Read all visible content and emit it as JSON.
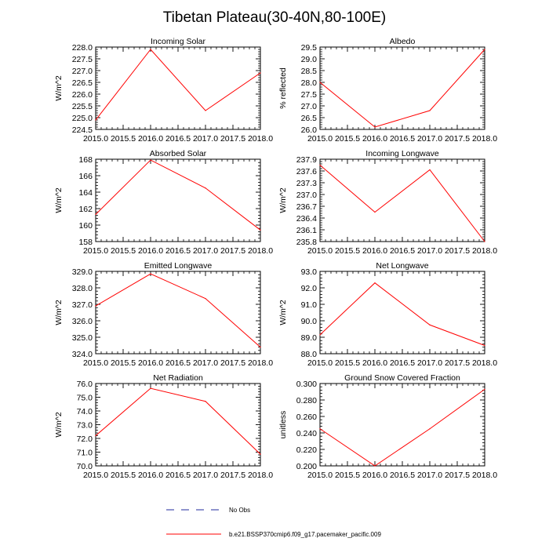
{
  "title": "Tibetan Plateau(30-40N,80-100E)",
  "colors": {
    "model": "#ff0000",
    "obs": "#1f2a9e",
    "axis": "#000000"
  },
  "legend": {
    "obs_label": "No Obs",
    "model_label": "b.e21.BSSP370cmip6.f09_g17.pacemaker_pacific.009"
  },
  "chart_data": [
    {
      "type": "line",
      "title": "Incoming Solar",
      "ylabel": "W/m^2",
      "x": [
        2015,
        2016,
        2017,
        2018
      ],
      "values": [
        224.9,
        227.9,
        225.3,
        226.9
      ],
      "xlim": [
        2015,
        2018
      ],
      "ylim": [
        224.5,
        228.0
      ],
      "xticks": [
        "2015.0",
        "2015.5",
        "2016.0",
        "2016.5",
        "2017.0",
        "2017.5",
        "2018.0"
      ],
      "yticks": [
        "224.5",
        "225.0",
        "225.5",
        "226.0",
        "226.5",
        "227.0",
        "227.5",
        "228.0"
      ]
    },
    {
      "type": "line",
      "title": "Albedo",
      "ylabel": "% reflected",
      "x": [
        2015,
        2016,
        2017,
        2018
      ],
      "values": [
        28.0,
        26.1,
        26.8,
        29.4
      ],
      "xlim": [
        2015,
        2018
      ],
      "ylim": [
        26.0,
        29.5
      ],
      "xticks": [
        "2015.0",
        "2015.5",
        "2016.0",
        "2016.5",
        "2017.0",
        "2017.5",
        "2018.0"
      ],
      "yticks": [
        "26.0",
        "26.5",
        "27.0",
        "27.5",
        "28.0",
        "28.5",
        "29.0",
        "29.5"
      ]
    },
    {
      "type": "line",
      "title": "Absorbed Solar",
      "ylabel": "W/m^2",
      "x": [
        2015,
        2016,
        2017,
        2018
      ],
      "values": [
        161.3,
        167.9,
        164.5,
        159.4
      ],
      "xlim": [
        2015,
        2018
      ],
      "ylim": [
        158,
        168
      ],
      "xticks": [
        "2015.0",
        "2015.5",
        "2016.0",
        "2016.5",
        "2017.0",
        "2017.5",
        "2018.0"
      ],
      "yticks": [
        "158",
        "160",
        "162",
        "164",
        "166",
        "168"
      ]
    },
    {
      "type": "line",
      "title": "Incoming Longwave",
      "ylabel": "W/m^2",
      "x": [
        2015,
        2016,
        2017,
        2018
      ],
      "values": [
        237.75,
        236.55,
        237.63,
        235.8
      ],
      "xlim": [
        2015,
        2018
      ],
      "ylim": [
        235.8,
        237.9
      ],
      "xticks": [
        "2015.0",
        "2015.5",
        "2016.0",
        "2016.5",
        "2017.0",
        "2017.5",
        "2018.0"
      ],
      "yticks": [
        "235.8",
        "236.1",
        "236.4",
        "236.7",
        "237.0",
        "237.3",
        "237.6",
        "237.9"
      ]
    },
    {
      "type": "line",
      "title": "Emitted Longwave",
      "ylabel": "W/m^2",
      "x": [
        2015,
        2016,
        2017,
        2018
      ],
      "values": [
        326.9,
        328.85,
        327.35,
        324.4
      ],
      "xlim": [
        2015,
        2018
      ],
      "ylim": [
        324.0,
        329.0
      ],
      "xticks": [
        "2015.0",
        "2015.5",
        "2016.0",
        "2016.5",
        "2017.0",
        "2017.5",
        "2018.0"
      ],
      "yticks": [
        "324.0",
        "325.0",
        "326.0",
        "327.0",
        "328.0",
        "329.0"
      ]
    },
    {
      "type": "line",
      "title": "Net Longwave",
      "ylabel": "W/m^2",
      "x": [
        2015,
        2016,
        2017,
        2018
      ],
      "values": [
        89.15,
        92.3,
        89.75,
        88.5
      ],
      "xlim": [
        2015,
        2018
      ],
      "ylim": [
        88.0,
        93.0
      ],
      "xticks": [
        "2015.0",
        "2015.5",
        "2016.0",
        "2016.5",
        "2017.0",
        "2017.5",
        "2018.0"
      ],
      "yticks": [
        "88.0",
        "89.0",
        "90.0",
        "91.0",
        "92.0",
        "93.0"
      ]
    },
    {
      "type": "line",
      "title": "Net Radiation",
      "ylabel": "W/m^2",
      "x": [
        2015,
        2016,
        2017,
        2018
      ],
      "values": [
        72.2,
        75.65,
        74.7,
        70.85
      ],
      "xlim": [
        2015,
        2018
      ],
      "ylim": [
        70.0,
        76.0
      ],
      "xticks": [
        "2015.0",
        "2015.5",
        "2016.0",
        "2016.5",
        "2017.0",
        "2017.5",
        "2018.0"
      ],
      "yticks": [
        "70.0",
        "71.0",
        "72.0",
        "73.0",
        "74.0",
        "75.0",
        "76.0"
      ]
    },
    {
      "type": "line",
      "title": "Ground Snow Covered Fraction",
      "ylabel": "unitless",
      "x": [
        2015,
        2016,
        2017,
        2018
      ],
      "values": [
        0.245,
        0.2,
        0.245,
        0.293
      ],
      "xlim": [
        2015,
        2018
      ],
      "ylim": [
        0.2,
        0.3
      ],
      "xticks": [
        "2015.0",
        "2015.5",
        "2016.0",
        "2016.5",
        "2017.0",
        "2017.5",
        "2018.0"
      ],
      "yticks": [
        "0.200",
        "0.220",
        "0.240",
        "0.260",
        "0.280",
        "0.300"
      ]
    }
  ]
}
